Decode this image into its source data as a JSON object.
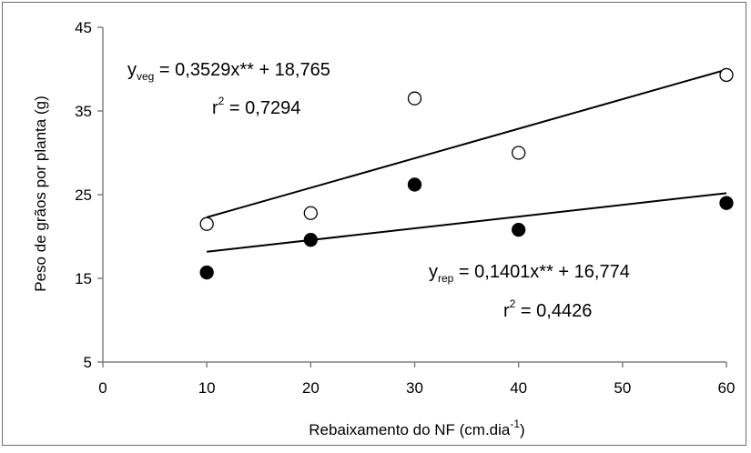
{
  "chart_data": {
    "type": "scatter",
    "xlabel": "Rebaixamento do NF (cm.dia",
    "xlabel_sup": "-1",
    "xlabel_end": ")",
    "ylabel": "Peso de grãos por planta (g)",
    "xlim": [
      0,
      60
    ],
    "ylim": [
      5,
      45
    ],
    "x_ticks": [
      "0",
      "10",
      "20",
      "30",
      "40",
      "50",
      "60"
    ],
    "y_ticks": [
      "45",
      "35",
      "25",
      "15",
      "5"
    ],
    "grid": false,
    "series": [
      {
        "name": "veg",
        "marker": "open-circle",
        "points": [
          [
            10,
            21.5
          ],
          [
            20,
            22.8
          ],
          [
            30,
            36.5
          ],
          [
            40,
            30.0
          ],
          [
            60,
            39.3
          ]
        ],
        "fit": {
          "slope": 0.3529,
          "intercept": 18.765,
          "x_range": [
            10,
            60
          ]
        }
      },
      {
        "name": "rep",
        "marker": "filled-circle",
        "points": [
          [
            10,
            15.7
          ],
          [
            20,
            19.6
          ],
          [
            30,
            26.2
          ],
          [
            40,
            20.8
          ],
          [
            60,
            24.0
          ]
        ],
        "fit": {
          "slope": 0.1401,
          "intercept": 16.774,
          "x_range": [
            10,
            60
          ]
        }
      }
    ],
    "annotations": {
      "veg": {
        "y_base": "y",
        "y_sub": "veg",
        "equation": " = 0,3529x** + 18,765",
        "r_base": "r",
        "r_sup": "2",
        "r_value": " = 0,7294"
      },
      "rep": {
        "y_base": "y",
        "y_sub": "rep",
        "equation": " = 0,1401x** + 16,774",
        "r_base": "r",
        "r_sup": "2",
        "r_value": " = 0,4426"
      }
    },
    "colors": {
      "axis": "#808080",
      "marker": "#000000",
      "line": "#000000"
    }
  }
}
